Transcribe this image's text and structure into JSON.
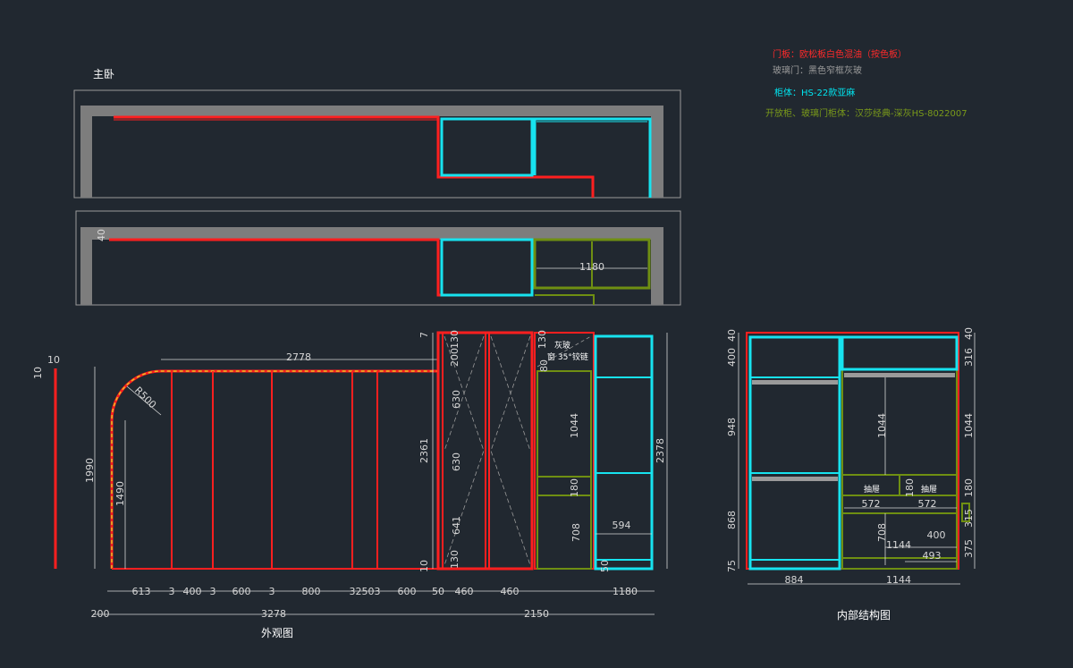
{
  "drawing": {
    "room_title": "主卧",
    "elevation_title": "外观图",
    "interior_title": "内部结构图"
  },
  "legend": [
    {
      "text": "门板：欧松板白色混油（按色板）",
      "color": "#ff2a2a"
    },
    {
      "text": "玻璃门：黑色窄框灰玻",
      "color": "#9a9a9a"
    },
    {
      "text": "柜体：HS-22款亚麻",
      "color": "#00e5f0"
    },
    {
      "text": "开放柜、玻璃门柜体：汉莎经典-深灰HS-8022007",
      "color": "#7a9a1a"
    }
  ],
  "colors": {
    "background": "#212830",
    "door": "#ff1f1f",
    "carcass": "#17e3ef",
    "open_cabinet": "#6f8f12",
    "wall": "#7d7d7d",
    "dimension": "#d6d6d6",
    "rounded_edge": "#e8c020"
  },
  "plan": {
    "depth": "40",
    "width": "1180"
  },
  "elevation": {
    "top_offset": "10",
    "top_offset2": "10",
    "height_total": "1990",
    "arc_height": "1490",
    "radius": "R500",
    "top_length": "2778",
    "door_height": "2361",
    "v_7": "7",
    "v_130_top": "130",
    "v_200": "200",
    "v_630a": "630",
    "v_630b": "630",
    "v_641": "641",
    "v_130_bot": "130",
    "v_10_bot": "10",
    "v_130_r": "130",
    "v_80": "80",
    "v_1044": "1044",
    "v_180": "180",
    "v_708": "708",
    "v_594": "594",
    "v_50": "50",
    "v_2378": "2378",
    "note_line1": "灰玻",
    "note_line2": "窗 35°铰链",
    "bottom_dims": [
      "613",
      "3",
      "400",
      "3",
      "600",
      "3",
      "800",
      "3",
      "250",
      "3",
      "600",
      "50",
      "460",
      "460",
      "1180"
    ],
    "overall_dims": [
      "200",
      "3278",
      "2150"
    ]
  },
  "interior": {
    "v_40l": "40",
    "v_400": "400",
    "v_948": "948",
    "v_868": "868",
    "v_75": "75",
    "v_1044": "1044",
    "v_180": "180",
    "v_708": "708",
    "v_40r": "40",
    "v_316": "316",
    "v_1044r": "1044",
    "v_180r": "180",
    "v_315": "315",
    "v_375": "375",
    "drawer_a": "抽屉",
    "drawer_b": "抽屉",
    "w_572a": "572",
    "w_572b": "572",
    "w_1144a": "1144",
    "w_400": "400",
    "w_493": "493",
    "w_884": "884",
    "w_1144": "1144"
  }
}
